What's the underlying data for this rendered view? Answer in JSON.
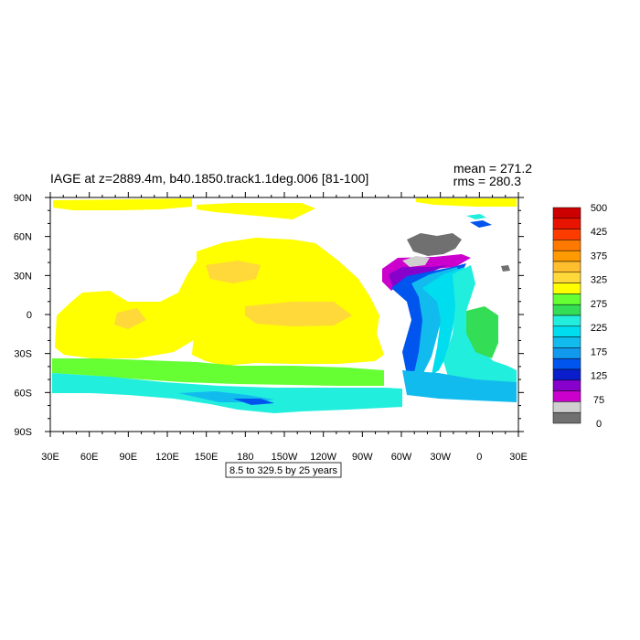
{
  "chart_data": {
    "type": "heatmap",
    "title": "IAGE at z=2889.4m, b40.1850.track1.1deg.006 [81-100]",
    "stats": {
      "mean_label": "mean = 271.2",
      "rms_label": "rms = 280.3"
    },
    "contour_info": "8.5 to 329.5 by 25 years",
    "x_ticks": [
      "30E",
      "60E",
      "90E",
      "120E",
      "150E",
      "180",
      "150W",
      "120W",
      "90W",
      "60W",
      "30W",
      "0",
      "30E"
    ],
    "y_ticks": [
      "90N",
      "60N",
      "30N",
      "0",
      "30S",
      "60S",
      "90S"
    ],
    "xlim": [
      30,
      390
    ],
    "ylim": [
      -90,
      90
    ],
    "colorbar": {
      "labels": [
        "500",
        "425",
        "375",
        "325",
        "275",
        "225",
        "175",
        "125",
        "75",
        "0"
      ],
      "colors": [
        "#cc0000",
        "#e81400",
        "#ff3c00",
        "#ff7800",
        "#ff9a00",
        "#ffbe2e",
        "#ffd83a",
        "#ffff00",
        "#66ff33",
        "#33dd55",
        "#22eedd",
        "#00ddee",
        "#11bbee",
        "#1199ee",
        "#0055ee",
        "#0a1ecc",
        "#8800cc",
        "#cc00cc",
        "#cfcfcf",
        "#707070"
      ]
    }
  }
}
